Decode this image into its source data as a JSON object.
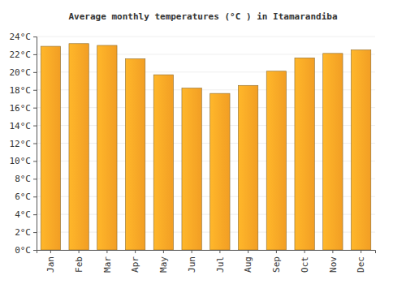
{
  "chart_data": {
    "type": "bar",
    "title": "Average monthly temperatures (°C ) in Itamarandiba",
    "categories": [
      "Jan",
      "Feb",
      "Mar",
      "Apr",
      "May",
      "Jun",
      "Jul",
      "Aug",
      "Sep",
      "Oct",
      "Nov",
      "Dec"
    ],
    "values": [
      22.9,
      23.2,
      23.0,
      21.5,
      19.7,
      18.2,
      17.6,
      18.5,
      20.1,
      21.6,
      22.1,
      22.5
    ],
    "color": "#ffa726",
    "ylim": [
      0,
      24
    ],
    "yticks": [
      {
        "value": 0,
        "label": "0°C"
      },
      {
        "value": 2,
        "label": "2°C"
      },
      {
        "value": 4,
        "label": "4°C"
      },
      {
        "value": 6,
        "label": "6°C"
      },
      {
        "value": 8,
        "label": "8°C"
      },
      {
        "value": 10,
        "label": "10°C"
      },
      {
        "value": 12,
        "label": "12°C"
      },
      {
        "value": 14,
        "label": "14°C"
      },
      {
        "value": 16,
        "label": "16°C"
      },
      {
        "value": 18,
        "label": "18°C"
      },
      {
        "value": 20,
        "label": "20°C"
      },
      {
        "value": 22,
        "label": "22°C"
      },
      {
        "value": 24,
        "label": "24°C"
      }
    ],
    "grid": true
  }
}
